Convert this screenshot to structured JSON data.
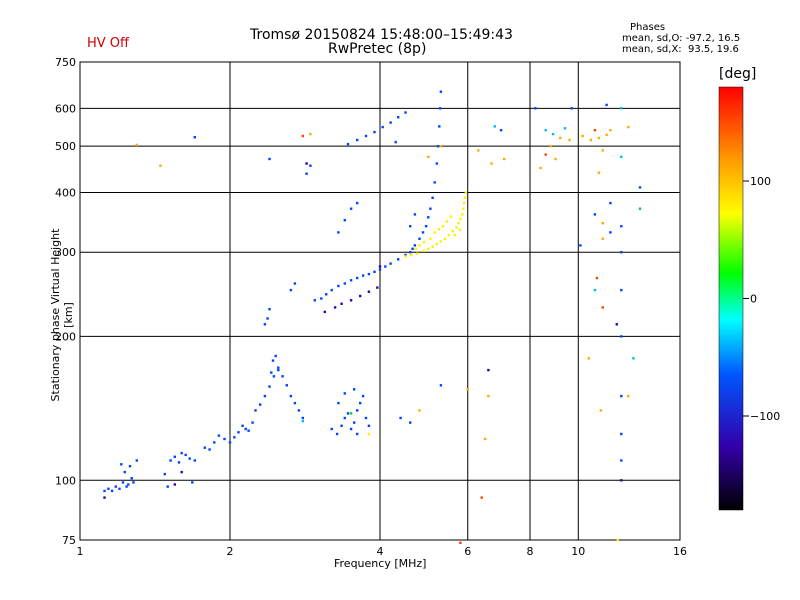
{
  "header": {
    "status": "HV Off",
    "title": "Tromsø 20150824 15:48:00–15:49:43",
    "subtitle": "RwPretec (8p)"
  },
  "stats": {
    "label": "Phases",
    "line_o": "mean, sd,O: -97.2, 16.5",
    "line_x": "mean, sd,X:  93.5, 19.6"
  },
  "colorbar": {
    "unit_label": "[deg]",
    "ticks": [
      {
        "label": "100",
        "value": 100
      },
      {
        "label": "0",
        "value": 0
      },
      {
        "label": "−100",
        "value": -100
      }
    ],
    "range": [
      -180,
      180
    ]
  },
  "chart_data": {
    "type": "scatter",
    "xlabel": "Frequency [MHz]",
    "ylabel": "Stationary phase Virtual Height [km]",
    "xscale": "log",
    "yscale": "log",
    "xlim": [
      1,
      16
    ],
    "ylim": [
      75,
      750
    ],
    "xticks": [
      1,
      2,
      4,
      6,
      8,
      10,
      16
    ],
    "xtick_labels": [
      "1",
      "2",
      "4",
      "6",
      "8",
      "10",
      "16"
    ],
    "yticks": [
      75,
      100,
      200,
      300,
      400,
      500,
      600,
      750
    ],
    "ytick_labels": [
      "75",
      "100",
      "200",
      "300",
      "400",
      "500",
      "600",
      "750"
    ],
    "grid": true,
    "series": [
      {
        "color": "#0044ff",
        "points": [
          [
            1.12,
            95
          ],
          [
            1.14,
            96
          ],
          [
            1.16,
            95
          ],
          [
            1.18,
            97
          ],
          [
            1.2,
            96
          ],
          [
            1.22,
            99
          ],
          [
            1.24,
            97
          ],
          [
            1.25,
            98
          ],
          [
            1.27,
            101
          ],
          [
            1.28,
            99
          ],
          [
            1.21,
            108
          ],
          [
            1.23,
            104
          ],
          [
            1.26,
            107
          ],
          [
            1.3,
            110
          ],
          [
            1.48,
            103
          ],
          [
            1.5,
            97
          ],
          [
            1.52,
            110
          ],
          [
            1.55,
            112
          ],
          [
            1.58,
            109
          ],
          [
            1.6,
            114
          ],
          [
            1.63,
            113
          ],
          [
            1.66,
            111
          ],
          [
            1.7,
            110
          ],
          [
            1.68,
            99
          ],
          [
            1.78,
            117
          ],
          [
            1.82,
            116
          ],
          [
            1.86,
            120
          ],
          [
            1.9,
            124
          ],
          [
            1.95,
            122
          ],
          [
            2.0,
            120
          ],
          [
            2.04,
            123
          ],
          [
            2.08,
            126
          ],
          [
            2.12,
            130
          ],
          [
            2.15,
            128
          ],
          [
            2.18,
            127
          ],
          [
            2.22,
            132
          ],
          [
            2.25,
            140
          ],
          [
            2.3,
            144
          ],
          [
            2.35,
            150
          ],
          [
            2.4,
            157
          ],
          [
            2.45,
            165
          ],
          [
            2.5,
            170
          ],
          [
            2.55,
            165
          ],
          [
            2.6,
            158
          ],
          [
            2.65,
            150
          ],
          [
            2.7,
            145
          ],
          [
            2.75,
            140
          ],
          [
            2.8,
            135
          ],
          [
            2.44,
            178
          ],
          [
            2.47,
            182
          ],
          [
            2.5,
            172
          ],
          [
            2.42,
            168
          ],
          [
            2.35,
            212
          ],
          [
            2.38,
            218
          ],
          [
            2.4,
            228
          ],
          [
            2.65,
            250
          ],
          [
            2.7,
            258
          ],
          [
            2.96,
            238
          ],
          [
            3.05,
            240
          ],
          [
            3.12,
            245
          ],
          [
            3.2,
            250
          ],
          [
            3.3,
            255
          ],
          [
            3.4,
            258
          ],
          [
            3.5,
            262
          ],
          [
            3.6,
            265
          ],
          [
            3.7,
            268
          ],
          [
            3.8,
            270
          ],
          [
            3.9,
            273
          ],
          [
            4.0,
            276
          ],
          [
            4.1,
            280
          ],
          [
            4.2,
            284
          ],
          [
            4.35,
            290
          ],
          [
            4.5,
            296
          ],
          [
            4.6,
            300
          ],
          [
            4.65,
            305
          ],
          [
            4.7,
            310
          ],
          [
            4.8,
            320
          ],
          [
            4.88,
            330
          ],
          [
            4.95,
            340
          ],
          [
            5.0,
            355
          ],
          [
            5.05,
            370
          ],
          [
            5.1,
            390
          ],
          [
            5.15,
            420
          ],
          [
            5.2,
            460
          ],
          [
            5.23,
            500
          ],
          [
            5.26,
            550
          ],
          [
            5.28,
            600
          ],
          [
            5.3,
            650
          ],
          [
            4.6,
            340
          ],
          [
            4.7,
            360
          ],
          [
            3.3,
            330
          ],
          [
            3.4,
            350
          ],
          [
            3.5,
            370
          ],
          [
            3.6,
            380
          ],
          [
            3.45,
            505
          ],
          [
            3.6,
            515
          ],
          [
            3.75,
            525
          ],
          [
            3.9,
            535
          ],
          [
            4.05,
            548
          ],
          [
            4.2,
            560
          ],
          [
            4.35,
            575
          ],
          [
            4.5,
            588
          ],
          [
            3.28,
            125
          ],
          [
            3.35,
            130
          ],
          [
            3.4,
            135
          ],
          [
            3.45,
            138
          ],
          [
            3.5,
            128
          ],
          [
            3.55,
            132
          ],
          [
            3.6,
            140
          ],
          [
            3.65,
            145
          ],
          [
            3.7,
            150
          ],
          [
            3.75,
            135
          ],
          [
            3.8,
            130
          ],
          [
            3.3,
            145
          ],
          [
            3.4,
            152
          ],
          [
            3.55,
            155
          ],
          [
            3.2,
            128
          ],
          [
            3.6,
            125
          ],
          [
            2.9,
            455
          ],
          [
            2.4,
            470
          ],
          [
            2.85,
            438
          ],
          [
            1.7,
            522
          ],
          [
            4.3,
            510
          ],
          [
            7.0,
            540
          ],
          [
            8.2,
            600
          ],
          [
            9.7,
            600
          ],
          [
            11.4,
            610
          ],
          [
            12.2,
            125
          ],
          [
            12.2,
            110
          ],
          [
            12.2,
            150
          ],
          [
            12.2,
            200
          ],
          [
            12.2,
            250
          ],
          [
            12.2,
            300
          ],
          [
            12.2,
            340
          ],
          [
            13.3,
            410
          ],
          [
            10.8,
            360
          ],
          [
            10.1,
            310
          ],
          [
            5.3,
            158
          ],
          [
            4.4,
            135
          ],
          [
            4.6,
            132
          ],
          [
            11.6,
            380
          ],
          [
            11.6,
            330
          ]
        ]
      },
      {
        "color": "#3300aa",
        "points": [
          [
            3.1,
            225
          ],
          [
            3.25,
            230
          ],
          [
            3.35,
            234
          ],
          [
            3.5,
            238
          ],
          [
            3.65,
            243
          ],
          [
            3.8,
            248
          ],
          [
            3.95,
            253
          ],
          [
            1.55,
            98
          ],
          [
            1.6,
            104
          ],
          [
            1.12,
            92
          ],
          [
            2.85,
            460
          ],
          [
            6.6,
            170
          ],
          [
            11.95,
            212
          ],
          [
            12.2,
            100
          ],
          [
            4.0,
            280
          ]
        ]
      },
      {
        "color": "#ffee00",
        "points": [
          [
            4.5,
            294
          ],
          [
            4.62,
            296
          ],
          [
            4.75,
            298
          ],
          [
            4.9,
            302
          ],
          [
            5.0,
            305
          ],
          [
            5.1,
            308
          ],
          [
            5.2,
            312
          ],
          [
            5.3,
            316
          ],
          [
            5.4,
            320
          ],
          [
            5.5,
            326
          ],
          [
            5.6,
            332
          ],
          [
            5.7,
            338
          ],
          [
            5.75,
            345
          ],
          [
            5.8,
            352
          ],
          [
            5.85,
            360
          ],
          [
            5.88,
            370
          ],
          [
            5.9,
            380
          ],
          [
            5.92,
            390
          ],
          [
            5.95,
            400
          ],
          [
            4.8,
            310
          ],
          [
            4.9,
            315
          ],
          [
            5.05,
            320
          ],
          [
            5.15,
            330
          ],
          [
            5.25,
            335
          ],
          [
            5.35,
            340
          ],
          [
            5.45,
            348
          ],
          [
            5.55,
            356
          ],
          [
            4.72,
            305
          ],
          [
            5.65,
            326
          ],
          [
            5.78,
            334
          ],
          [
            12.0,
            75
          ],
          [
            3.8,
            125
          ]
        ]
      },
      {
        "color": "#ffaa00",
        "points": [
          [
            1.45,
            455
          ],
          [
            1.3,
            503
          ],
          [
            5.0,
            475
          ],
          [
            5.3,
            500
          ],
          [
            6.3,
            490
          ],
          [
            6.7,
            460
          ],
          [
            7.1,
            470
          ],
          [
            8.4,
            450
          ],
          [
            8.8,
            500
          ],
          [
            9.2,
            520
          ],
          [
            9.6,
            515
          ],
          [
            10.2,
            525
          ],
          [
            10.6,
            515
          ],
          [
            11.0,
            520
          ],
          [
            11.4,
            528
          ],
          [
            11.6,
            540
          ],
          [
            12.6,
            548
          ],
          [
            11.2,
            490
          ],
          [
            10.5,
            180
          ],
          [
            11.1,
            140
          ],
          [
            12.6,
            150
          ],
          [
            11.0,
            440
          ],
          [
            11.2,
            345
          ],
          [
            11.2,
            320
          ],
          [
            6.6,
            150
          ],
          [
            6.5,
            122
          ],
          [
            6.0,
            155
          ],
          [
            4.8,
            140
          ],
          [
            2.9,
            530
          ],
          [
            9.0,
            470
          ]
        ]
      },
      {
        "color": "#ff4400",
        "points": [
          [
            6.4,
            92
          ],
          [
            5.8,
            74
          ],
          [
            10.9,
            265
          ],
          [
            11.2,
            230
          ],
          [
            8.6,
            480
          ],
          [
            10.8,
            540
          ],
          [
            2.8,
            525
          ]
        ]
      },
      {
        "color": "#00bbff",
        "points": [
          [
            2.8,
            133
          ],
          [
            9.4,
            545
          ],
          [
            8.9,
            530
          ],
          [
            12.2,
            475
          ],
          [
            12.9,
            180
          ],
          [
            10.8,
            250
          ],
          [
            6.8,
            550
          ],
          [
            12.2,
            600
          ],
          [
            8.6,
            540
          ]
        ]
      },
      {
        "color": "#00cc44",
        "points": [
          [
            13.3,
            370
          ],
          [
            3.5,
            138
          ]
        ]
      }
    ]
  }
}
